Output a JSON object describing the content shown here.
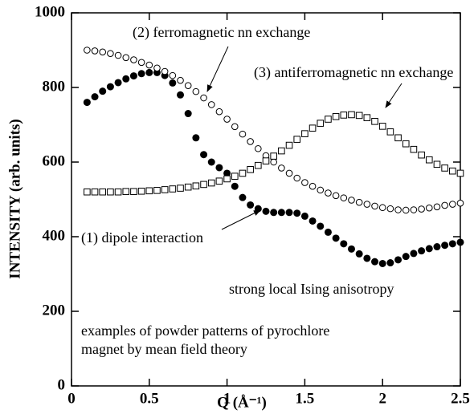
{
  "chart_data": {
    "type": "scatter",
    "x_label": "Q  (Å⁻¹)",
    "y_label": "INTENSITY (arb. units)",
    "annotations": [
      "(2) ferromagnetic nn exchange",
      "(3) antiferromagnetic nn exchange",
      "(1) dipole interaction",
      "strong local Ising anisotropy",
      "examples of powder patterns of pyrochlore",
      "magnet by mean field theory"
    ],
    "x": [
      0.1,
      0.15,
      0.2,
      0.25,
      0.3,
      0.35,
      0.4,
      0.45,
      0.5,
      0.55,
      0.6,
      0.65,
      0.7,
      0.75,
      0.8,
      0.85,
      0.9,
      0.95,
      1.0,
      1.05,
      1.1,
      1.15,
      1.2,
      1.25,
      1.3,
      1.35,
      1.4,
      1.45,
      1.5,
      1.55,
      1.6,
      1.65,
      1.7,
      1.75,
      1.8,
      1.85,
      1.9,
      1.95,
      2.0,
      2.05,
      2.1,
      2.15,
      2.2,
      2.25,
      2.3,
      2.35,
      2.4,
      2.45,
      2.5
    ],
    "series": [
      {
        "marker": "filled-circle",
        "color": "#000000",
        "values": [
          760,
          775,
          790,
          802,
          813,
          823,
          831,
          837,
          840,
          840,
          832,
          812,
          780,
          730,
          665,
          620,
          600,
          585,
          570,
          535,
          505,
          485,
          475,
          468,
          465,
          465,
          465,
          463,
          455,
          442,
          428,
          412,
          396,
          381,
          367,
          354,
          342,
          333,
          328,
          330,
          338,
          347,
          355,
          362,
          368,
          373,
          377,
          381,
          385
        ]
      },
      {
        "marker": "open-circle",
        "color": "#000000",
        "values": [
          900,
          898,
          895,
          891,
          886,
          880,
          874,
          867,
          860,
          852,
          843,
          832,
          819,
          805,
          789,
          772,
          754,
          735,
          715,
          695,
          675,
          655,
          636,
          617,
          600,
          584,
          570,
          557,
          545,
          535,
          525,
          517,
          510,
          504,
          498,
          492,
          487,
          482,
          478,
          475,
          472,
          471,
          472,
          474,
          477,
          480,
          484,
          487,
          490
        ]
      },
      {
        "marker": "open-square",
        "color": "#000000",
        "values": [
          520,
          520,
          520,
          520,
          520,
          521,
          521,
          522,
          523,
          524,
          526,
          528,
          530,
          533,
          536,
          540,
          544,
          549,
          555,
          562,
          570,
          580,
          591,
          603,
          616,
          630,
          645,
          661,
          676,
          691,
          704,
          715,
          722,
          726,
          727,
          725,
          719,
          709,
          696,
          681,
          665,
          649,
          634,
          619,
          606,
          594,
          584,
          576,
          570
        ]
      }
    ],
    "xlim": [
      0,
      2.5
    ],
    "ylim": [
      0,
      1000
    ],
    "xticks": [
      0,
      0.5,
      1,
      1.5,
      2,
      2.5
    ],
    "yticks": [
      0,
      200,
      400,
      600,
      800,
      1000
    ]
  }
}
